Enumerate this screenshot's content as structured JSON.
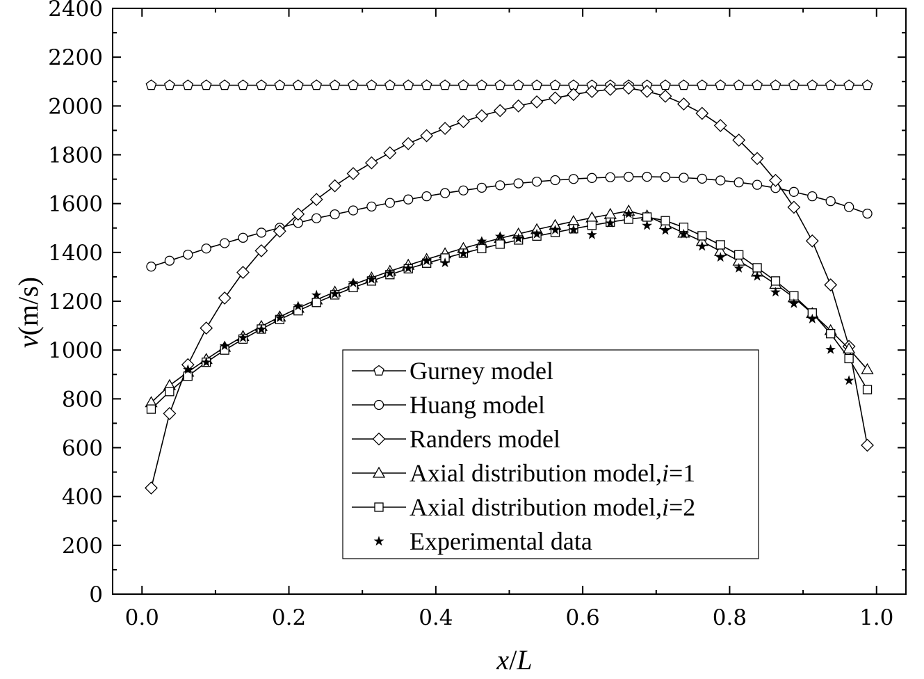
{
  "chart_data": {
    "type": "line",
    "title": "",
    "xlabel": {
      "var": "x",
      "sep": "/",
      "denom": "L"
    },
    "ylabel": {
      "var": "v",
      "unit": "(m/s)"
    },
    "xlim": [
      -0.04,
      1.04
    ],
    "ylim": [
      0,
      2400
    ],
    "xticks": [
      "0.0",
      "0.2",
      "0.4",
      "0.6",
      "0.8",
      "1.0"
    ],
    "xtick_values": [
      0,
      0.2,
      0.4,
      0.6,
      0.8,
      1.0
    ],
    "yticks": [
      "0",
      "200",
      "400",
      "600",
      "800",
      "1000",
      "1200",
      "1400",
      "1600",
      "1800",
      "2000",
      "2200",
      "2400"
    ],
    "ytick_values": [
      0,
      200,
      400,
      600,
      800,
      1000,
      1200,
      1400,
      1600,
      1800,
      2000,
      2200,
      2400
    ],
    "legend_position": "lower-center",
    "x": [
      0.0125,
      0.0375,
      0.0625,
      0.0875,
      0.1125,
      0.1375,
      0.1625,
      0.1875,
      0.2125,
      0.2375,
      0.2625,
      0.2875,
      0.3125,
      0.3375,
      0.3625,
      0.3875,
      0.4125,
      0.4375,
      0.4625,
      0.4875,
      0.5125,
      0.5375,
      0.5625,
      0.5875,
      0.6125,
      0.6375,
      0.6625,
      0.6875,
      0.7125,
      0.7375,
      0.7625,
      0.7875,
      0.8125,
      0.8375,
      0.8625,
      0.8875,
      0.9125,
      0.9375,
      0.9625,
      0.9875
    ],
    "series": [
      {
        "name": "Gurney model",
        "marker": "pentagon",
        "line": "solid",
        "values": [
          2085,
          2085,
          2085,
          2085,
          2085,
          2085,
          2085,
          2085,
          2085,
          2085,
          2085,
          2085,
          2085,
          2085,
          2085,
          2085,
          2085,
          2085,
          2085,
          2085,
          2085,
          2085,
          2085,
          2085,
          2085,
          2085,
          2085,
          2085,
          2085,
          2085,
          2085,
          2085,
          2085,
          2085,
          2085,
          2085,
          2085,
          2085,
          2085,
          2085
        ]
      },
      {
        "name": "Huang model",
        "marker": "circle",
        "line": "solid",
        "values": [
          1342,
          1366,
          1391,
          1416,
          1438,
          1460,
          1481,
          1501,
          1521,
          1540,
          1556,
          1572,
          1588,
          1603,
          1617,
          1630,
          1643,
          1654,
          1665,
          1675,
          1683,
          1690,
          1696,
          1701,
          1705,
          1708,
          1710,
          1710,
          1709,
          1706,
          1702,
          1695,
          1687,
          1677,
          1664,
          1648,
          1630,
          1610,
          1586,
          1559
        ]
      },
      {
        "name": "Randers model",
        "marker": "diamond",
        "line": "solid",
        "values": [
          435,
          740,
          940,
          1090,
          1213,
          1318,
          1407,
          1487,
          1557,
          1617,
          1673,
          1723,
          1767,
          1808,
          1846,
          1878,
          1908,
          1936,
          1960,
          1981,
          2000,
          2017,
          2033,
          2047,
          2059,
          2068,
          2073,
          2060,
          2040,
          2008,
          1970,
          1920,
          1860,
          1785,
          1695,
          1585,
          1447,
          1267,
          1015,
          610
        ]
      },
      {
        "name": "Axial distribution model,i=1",
        "marker": "triangle",
        "line": "solid",
        "values": [
          785,
          855,
          910,
          962,
          1012,
          1056,
          1097,
          1136,
          1172,
          1206,
          1238,
          1268,
          1296,
          1323,
          1348,
          1372,
          1395,
          1417,
          1438,
          1458,
          1476,
          1494,
          1511,
          1527,
          1542,
          1556,
          1570,
          1550,
          1515,
          1480,
          1445,
          1405,
          1365,
          1320,
          1270,
          1215,
          1150,
          1080,
          1005,
          920
        ]
      },
      {
        "name": "Axial distribution model,i=2",
        "marker": "square",
        "line": "solid",
        "values": [
          758,
          830,
          893,
          950,
          1000,
          1045,
          1086,
          1125,
          1161,
          1195,
          1226,
          1256,
          1283,
          1309,
          1333,
          1356,
          1377,
          1397,
          1416,
          1434,
          1451,
          1467,
          1482,
          1497,
          1511,
          1524,
          1536,
          1545,
          1530,
          1503,
          1468,
          1431,
          1390,
          1337,
          1283,
          1222,
          1152,
          1067,
          965,
          838
        ]
      },
      {
        "name": "Experimental data",
        "marker": "star",
        "line": "none",
        "values": [
          null,
          null,
          920,
          950,
          1017,
          1050,
          1085,
          1132,
          1180,
          1225,
          1230,
          1275,
          1290,
          1315,
          1335,
          1365,
          1357,
          1395,
          1445,
          1465,
          1457,
          1475,
          1492,
          1493,
          1472,
          1520,
          1558,
          1510,
          1490,
          1475,
          1425,
          1380,
          1335,
          1302,
          1237,
          1190,
          1127,
          1002,
          875,
          null
        ]
      }
    ]
  }
}
